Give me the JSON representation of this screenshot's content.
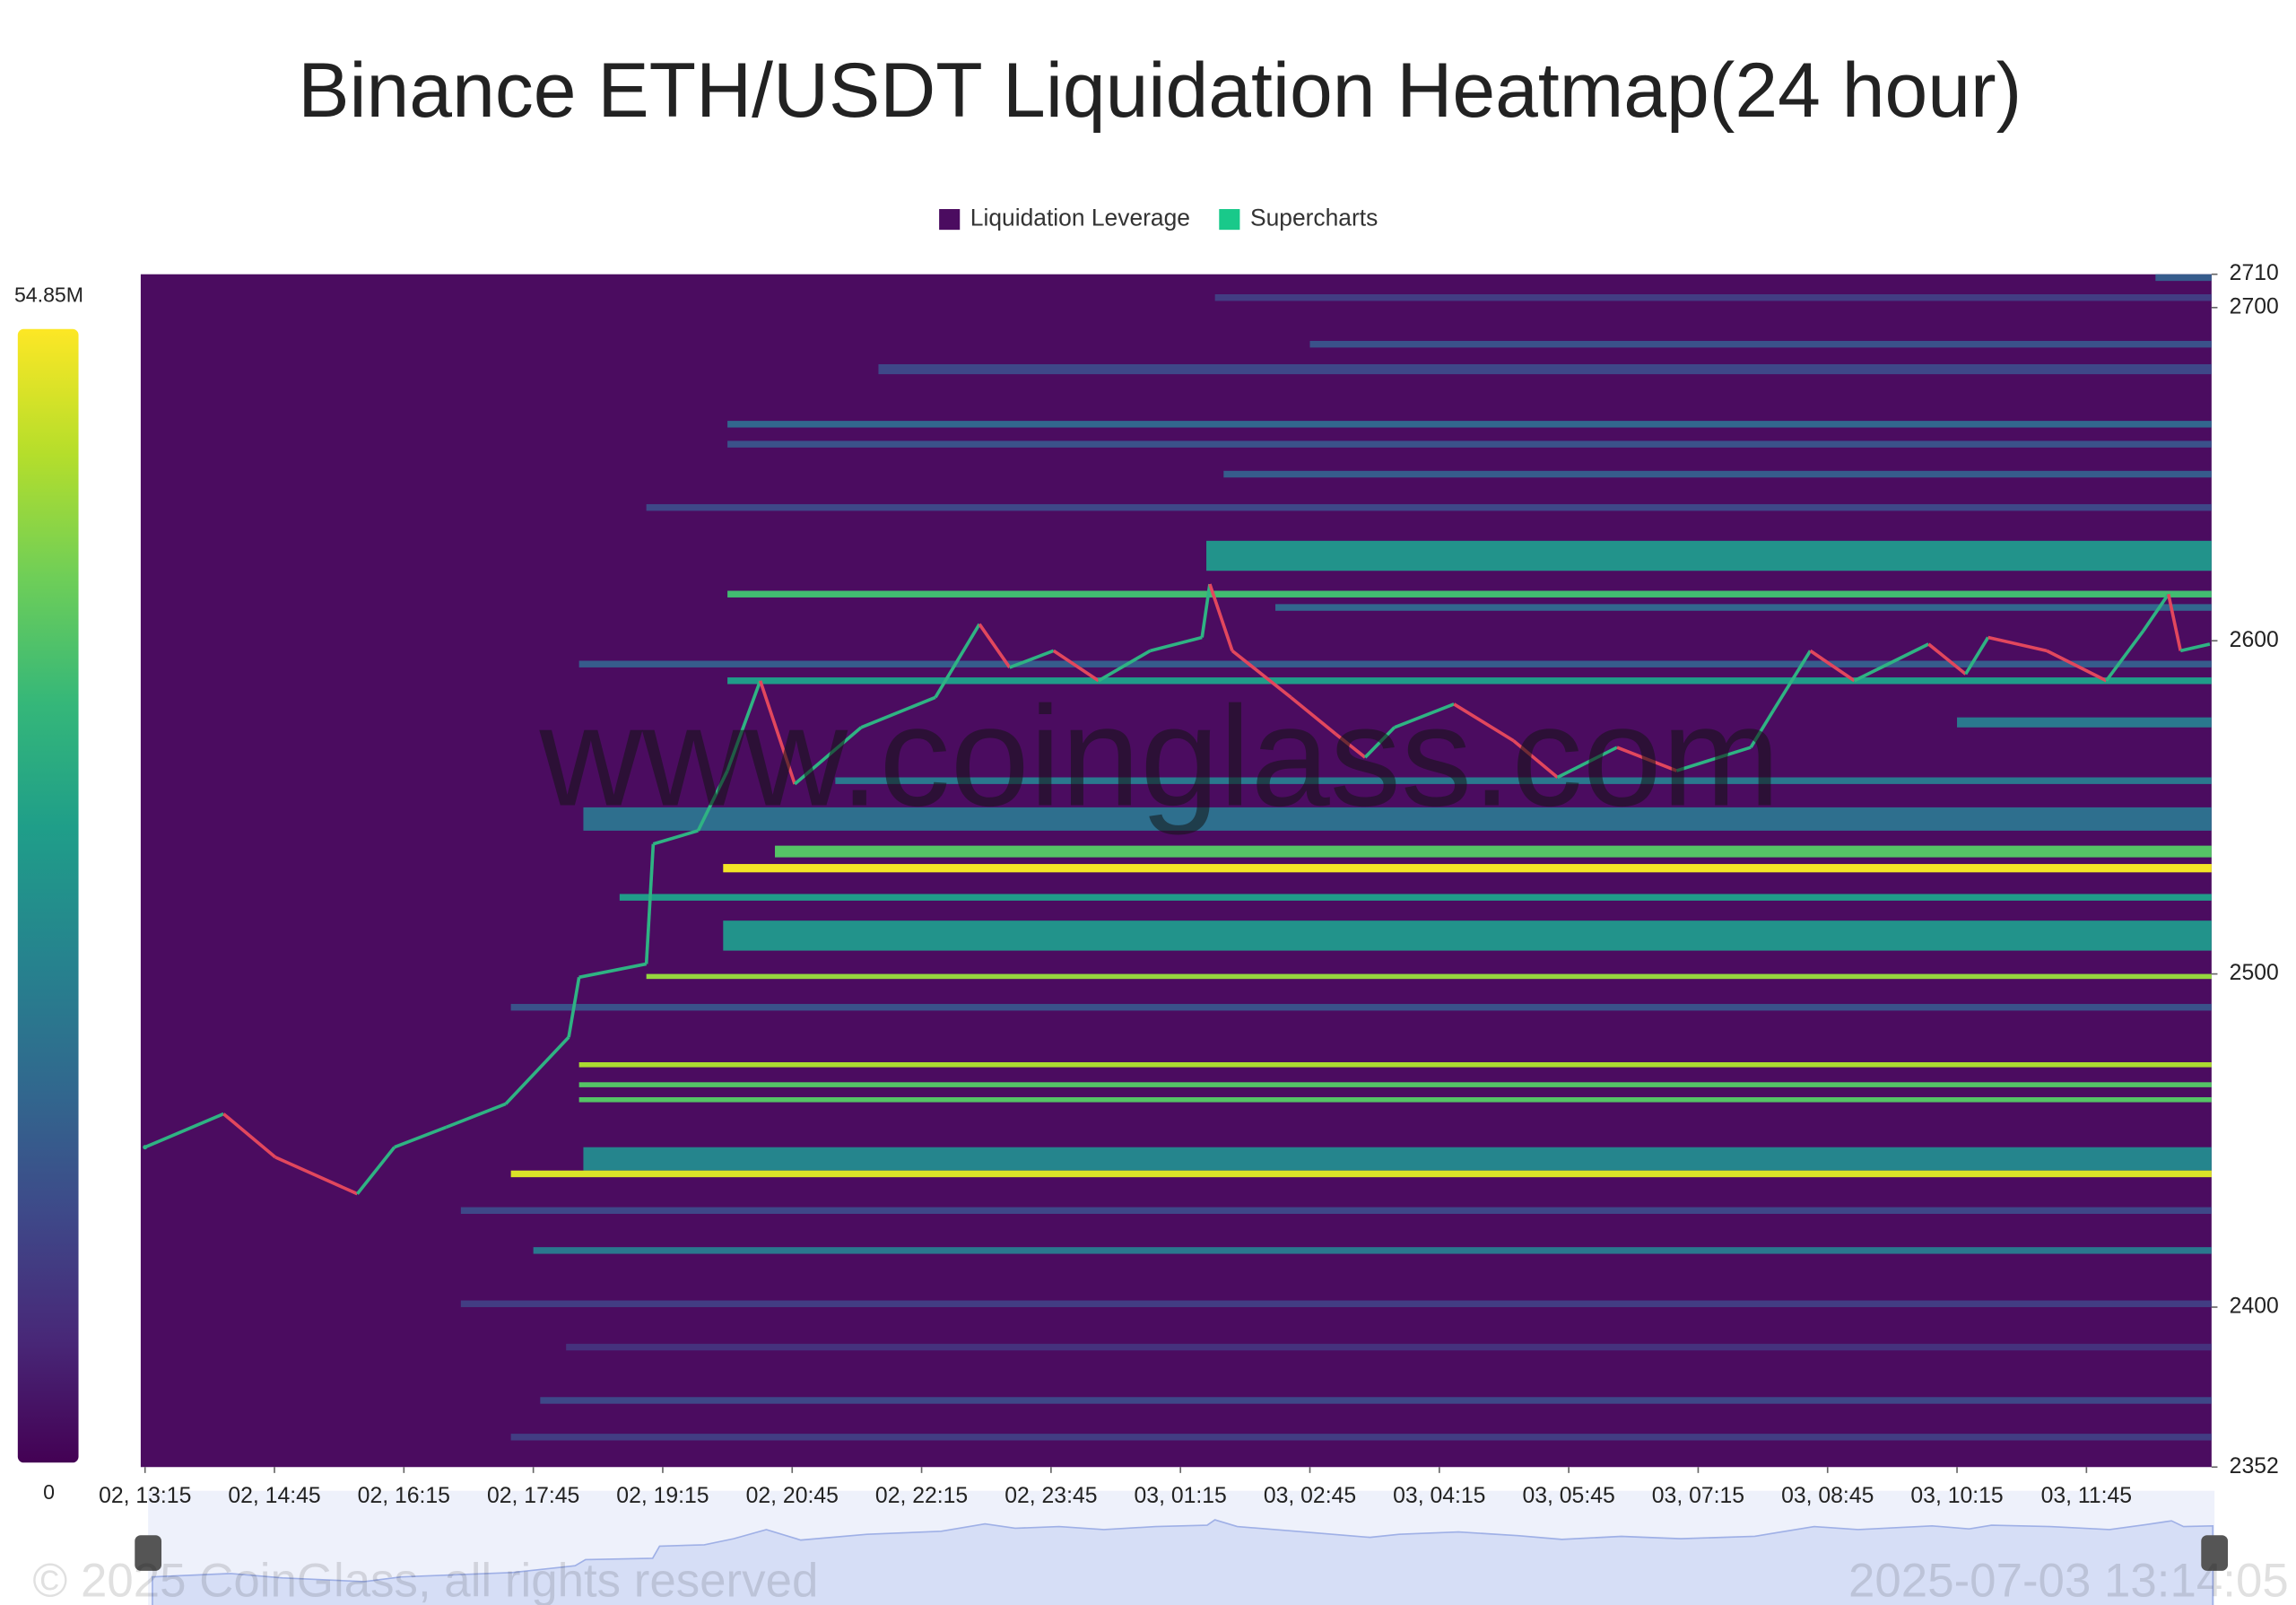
{
  "chart_data": {
    "type": "heatmap",
    "title": "Binance ETH/USDT Liquidation Heatmap(24 hour)",
    "watermark": "www.coinglass.com",
    "copyright": "© 2025 CoinGlass, all rights reserved",
    "timestamp": "2025-07-03 13:14:05",
    "xlim": [
      -0.05,
      23.95
    ],
    "xticks": [
      {
        "value": 0,
        "label": "02, 13:15"
      },
      {
        "value": 1.5,
        "label": "02, 14:45"
      },
      {
        "value": 3,
        "label": "02, 16:15"
      },
      {
        "value": 4.5,
        "label": "02, 17:45"
      },
      {
        "value": 6,
        "label": "02, 19:15"
      },
      {
        "value": 7.5,
        "label": "02, 20:45"
      },
      {
        "value": 9,
        "label": "02, 22:15"
      },
      {
        "value": 10.5,
        "label": "02, 23:45"
      },
      {
        "value": 12,
        "label": "03, 01:15"
      },
      {
        "value": 13.5,
        "label": "03, 02:45"
      },
      {
        "value": 15,
        "label": "03, 04:15"
      },
      {
        "value": 16.5,
        "label": "03, 05:45"
      },
      {
        "value": 18,
        "label": "03, 07:15"
      },
      {
        "value": 19.5,
        "label": "03, 08:45"
      },
      {
        "value": 21,
        "label": "03, 10:15"
      },
      {
        "value": 22.5,
        "label": "03, 11:45"
      }
    ],
    "ylim": [
      2352,
      2710
    ],
    "yticks": [
      2352,
      2400,
      2500,
      2600,
      2700,
      2710
    ],
    "colorbar": {
      "lim": [
        0,
        54850000
      ],
      "ticks": [
        {
          "value": 54850000,
          "label": "54.85M"
        },
        0
      ]
    },
    "series": [
      {
        "name": "Liquidation Leverage",
        "color": "#4b0c60"
      },
      {
        "name": "Supercharts",
        "color": "#19c98a",
        "up_color": "#2fb383",
        "down_color": "#e2475d",
        "x": [
          0,
          0.91,
          1.51,
          2.46,
          2.89,
          3.49,
          4.18,
          4.91,
          5.03,
          5.81,
          5.89,
          6.41,
          6.75,
          7.13,
          7.53,
          8.3,
          9.16,
          9.67,
          10.02,
          10.53,
          11.05,
          11.65,
          12.25,
          12.34,
          12.6,
          13.28,
          13.8,
          14.14,
          14.48,
          15.17,
          15.86,
          16.37,
          17.06,
          17.75,
          18.61,
          18.87,
          19.3,
          19.81,
          20.67,
          21.1,
          21.36,
          22.04,
          22.73,
          23.16,
          23.45,
          23.59,
          23.93
        ],
        "values": [
          2448,
          2458,
          2445,
          2434,
          2448,
          2454,
          2461,
          2481,
          2499,
          2503,
          2539,
          2543,
          2561,
          2588,
          2557,
          2574,
          2583,
          2605,
          2592,
          2597,
          2588,
          2597,
          2601,
          2617,
          2597,
          2583,
          2572,
          2565,
          2574,
          2581,
          2570,
          2559,
          2568,
          2561,
          2568,
          2579,
          2597,
          2588,
          2599,
          2590,
          2601,
          2597,
          2588,
          2603,
          2614,
          2597,
          2599
        ]
      }
    ],
    "bands": [
      {
        "low": 2530.5,
        "high": 2533,
        "start": 6.7,
        "value": 54000000
      },
      {
        "low": 2535,
        "high": 2538.5,
        "start": 7.3,
        "value": 40000000
      },
      {
        "low": 2507,
        "high": 2516,
        "start": 6.7,
        "value": 28000000
      },
      {
        "low": 2498.5,
        "high": 2500,
        "start": 5.81,
        "value": 46000000
      },
      {
        "low": 2472,
        "high": 2473.5,
        "start": 5.03,
        "value": 48000000
      },
      {
        "low": 2466,
        "high": 2467.5,
        "start": 5.03,
        "value": 40000000
      },
      {
        "low": 2461.5,
        "high": 2463,
        "start": 5.03,
        "value": 40000000
      },
      {
        "low": 2441,
        "high": 2448,
        "start": 5.08,
        "value": 25000000
      },
      {
        "low": 2439,
        "high": 2441,
        "start": 4.24,
        "value": 52000000
      },
      {
        "low": 2428,
        "high": 2430,
        "start": 3.66,
        "value": 12000000
      },
      {
        "low": 2416,
        "high": 2418,
        "start": 4.5,
        "value": 22000000
      },
      {
        "low": 2400,
        "high": 2402,
        "start": 3.66,
        "value": 10000000
      },
      {
        "low": 2387,
        "high": 2389,
        "start": 4.88,
        "value": 8000000
      },
      {
        "low": 2371,
        "high": 2373,
        "start": 4.58,
        "value": 12000000
      },
      {
        "low": 2360,
        "high": 2362,
        "start": 4.24,
        "value": 10000000
      },
      {
        "low": 2543,
        "high": 2550,
        "start": 5.08,
        "value": 20000000
      },
      {
        "low": 2522,
        "high": 2524,
        "start": 5.5,
        "value": 30000000
      },
      {
        "low": 2489,
        "high": 2491,
        "start": 4.24,
        "value": 14000000
      },
      {
        "low": 2621,
        "high": 2630,
        "start": 12.3,
        "value": 28000000
      },
      {
        "low": 2613,
        "high": 2615,
        "start": 6.75,
        "value": 38000000
      },
      {
        "low": 2609,
        "high": 2611,
        "start": 13.1,
        "value": 18000000
      },
      {
        "low": 2587,
        "high": 2589,
        "start": 6.75,
        "value": 30000000
      },
      {
        "low": 2592,
        "high": 2594,
        "start": 5.03,
        "value": 16000000
      },
      {
        "low": 2574,
        "high": 2577,
        "start": 21,
        "value": 22000000
      },
      {
        "low": 2639,
        "high": 2641,
        "start": 5.81,
        "value": 12000000
      },
      {
        "low": 2658,
        "high": 2660,
        "start": 6.75,
        "value": 14000000
      },
      {
        "low": 2664,
        "high": 2666,
        "start": 6.75,
        "value": 18000000
      },
      {
        "low": 2680,
        "high": 2683,
        "start": 8.5,
        "value": 12000000
      },
      {
        "low": 2688,
        "high": 2690,
        "start": 13.5,
        "value": 14000000
      },
      {
        "low": 2702,
        "high": 2704,
        "start": 12.4,
        "value": 10000000
      },
      {
        "low": 2708,
        "high": 2710,
        "start": 23.3,
        "value": 16000000
      },
      {
        "low": 2649,
        "high": 2651,
        "start": 12.5,
        "value": 16000000
      },
      {
        "low": 2557,
        "high": 2559,
        "start": 8,
        "value": 22000000
      }
    ]
  }
}
